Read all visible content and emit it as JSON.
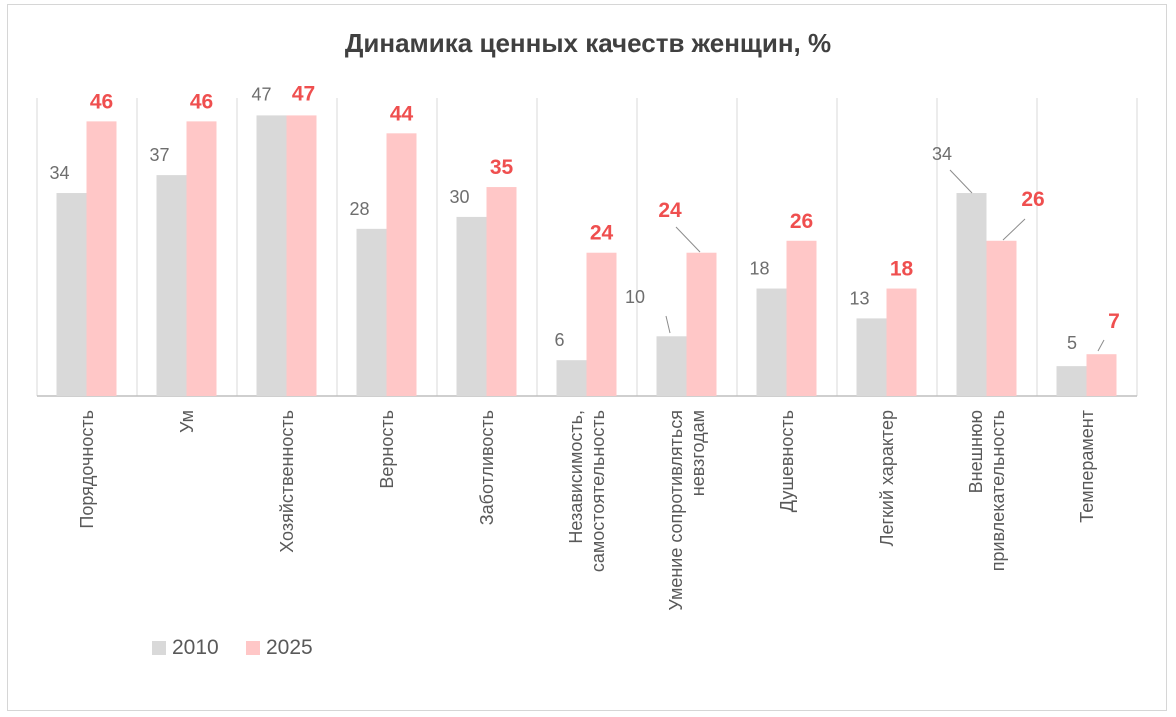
{
  "chart_data": {
    "type": "bar",
    "title": "Динамика ценных качеств женщин, %",
    "categories": [
      [
        "Порядочность"
      ],
      [
        "Ум"
      ],
      [
        "Хозяйственность"
      ],
      [
        "Верность"
      ],
      [
        "Заботливость"
      ],
      [
        "Независимость,",
        "самостоятельность"
      ],
      [
        "Умение сопротивляться",
        "невзгодам"
      ],
      [
        "Душевность"
      ],
      [
        "Легкий характер"
      ],
      [
        "Внешнюю",
        "привлекательность"
      ],
      [
        "Темперамент"
      ]
    ],
    "series": [
      {
        "name": "2010",
        "values": [
          34,
          37,
          47,
          28,
          30,
          6,
          10,
          18,
          13,
          34,
          5
        ],
        "color": "#d9d9d9",
        "label_color": "#6e6e6e"
      },
      {
        "name": "2025",
        "values": [
          46,
          46,
          47,
          44,
          35,
          24,
          24,
          26,
          18,
          26,
          7
        ],
        "color": "#ffc7c7",
        "label_color": "#ef4f4f"
      }
    ],
    "ylim": [
      0,
      50
    ],
    "grid": "vertical separators",
    "legend": "bottom-left"
  }
}
